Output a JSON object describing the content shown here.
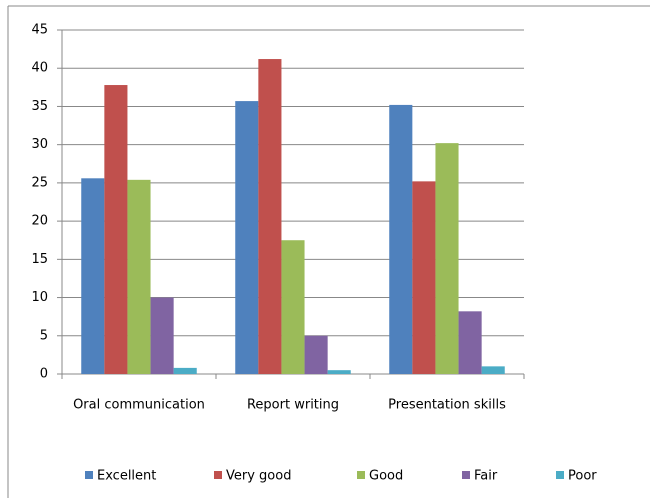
{
  "chart_data": {
    "type": "bar",
    "categories": [
      "Oral communication",
      "Report writing",
      "Presentation skills"
    ],
    "series": [
      {
        "name": "Excellent",
        "color": "#4f81bd",
        "values": [
          25.6,
          35.7,
          35.2
        ]
      },
      {
        "name": "Very good",
        "color": "#c0504d",
        "values": [
          37.8,
          41.2,
          25.2
        ]
      },
      {
        "name": "Good",
        "color": "#9bbb59",
        "values": [
          25.4,
          17.5,
          30.2
        ]
      },
      {
        "name": "Fair",
        "color": "#8064a2",
        "values": [
          10,
          5,
          8.2
        ]
      },
      {
        "name": "Poor",
        "color": "#4bacc6",
        "values": [
          0.8,
          0.5,
          1.0
        ]
      }
    ],
    "ylim": [
      0,
      45
    ],
    "yticks": [
      0,
      5,
      10,
      15,
      20,
      25,
      30,
      35,
      40,
      45
    ],
    "grid": true,
    "legend": "bottom"
  }
}
